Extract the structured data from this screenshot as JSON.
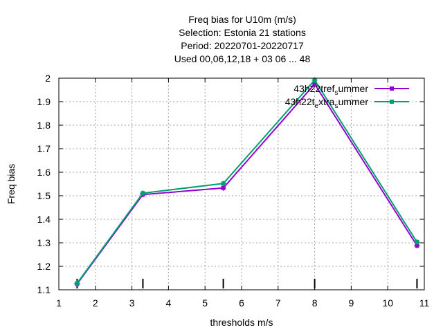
{
  "chart_data": {
    "type": "line",
    "title_lines": [
      "Freq bias  for U10m (m/s)",
      "Selection: Estonia     21 stations",
      "Period: 20220701-20220717",
      "Used  00,06,12,18  + 03 06 ... 48"
    ],
    "xlabel": "thresholds m/s",
    "ylabel": "Freq bias",
    "xlim": [
      1,
      11
    ],
    "ylim": [
      1.1,
      2.0
    ],
    "x_ticks": [
      1,
      2,
      3,
      4,
      5,
      6,
      7,
      8,
      9,
      10,
      11
    ],
    "y_ticks": [
      1.1,
      1.2,
      1.3,
      1.4,
      1.5,
      1.6,
      1.7,
      1.8,
      1.9,
      2.0
    ],
    "x_tick_labels": [
      "1",
      "2",
      "3",
      "4",
      "5",
      "6",
      "7",
      "8",
      "9",
      "10",
      "11"
    ],
    "y_tick_labels": [
      "1.1",
      "1.2",
      "1.3",
      "1.4",
      "1.5",
      "1.6",
      "1.7",
      "1.8",
      "1.9",
      "2"
    ],
    "grid": true,
    "legend_position": "top-right",
    "threshold_markers": [
      1.5,
      3.3,
      5.5,
      8.0,
      10.8
    ],
    "series": [
      {
        "name": "43h22t_ref_summer",
        "label_main": "43h22tref",
        "label_sub1": "s",
        "label_tail": "ummer",
        "color": "#9400d3",
        "x": [
          1.5,
          3.3,
          5.5,
          8.0,
          10.8
        ],
        "y": [
          1.125,
          1.505,
          1.533,
          1.975,
          1.288
        ]
      },
      {
        "name": "43h22t_extra_summer",
        "label_main": "43h22t",
        "label_sub1": "e",
        "label_mid": "xtra",
        "label_sub2": "s",
        "label_tail": "ummer",
        "color": "#009e73",
        "x": [
          1.5,
          3.3,
          5.5,
          8.0,
          10.8
        ],
        "y": [
          1.128,
          1.511,
          1.552,
          1.992,
          1.303
        ]
      }
    ]
  }
}
